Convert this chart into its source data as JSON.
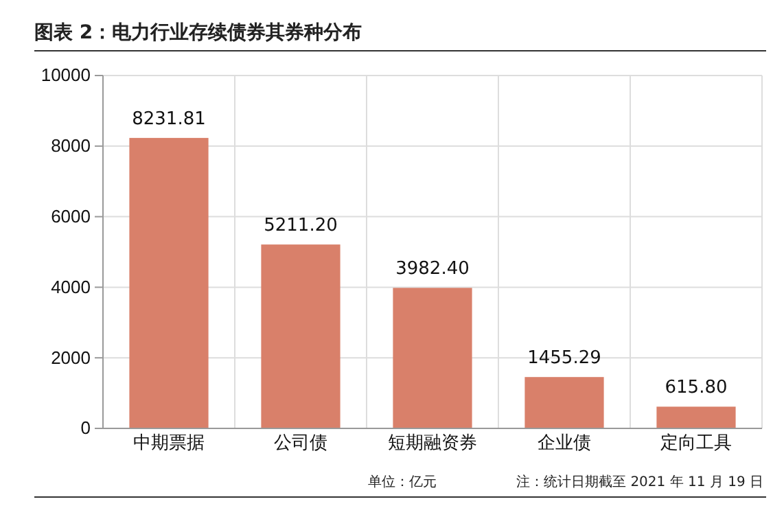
{
  "chart_data": {
    "type": "bar",
    "title": "图表 2：电力行业存续债券其券种分布",
    "categories": [
      "中期票据",
      "公司债",
      "短期融资券",
      "企业债",
      "定向工具"
    ],
    "values": [
      8231.81,
      5211.2,
      3982.4,
      1455.29,
      615.8
    ],
    "value_labels": [
      "8231.81",
      "5211.20",
      "3982.40",
      "1455.29",
      "615.80"
    ],
    "color": "#d9806a",
    "ylim": [
      0,
      10000
    ],
    "yticks": [
      0,
      2000,
      4000,
      6000,
      8000,
      10000
    ],
    "grid": true,
    "annotations": [
      "单位：亿元",
      "注：统计日期截至 2021 年 11 月 19 日"
    ]
  }
}
